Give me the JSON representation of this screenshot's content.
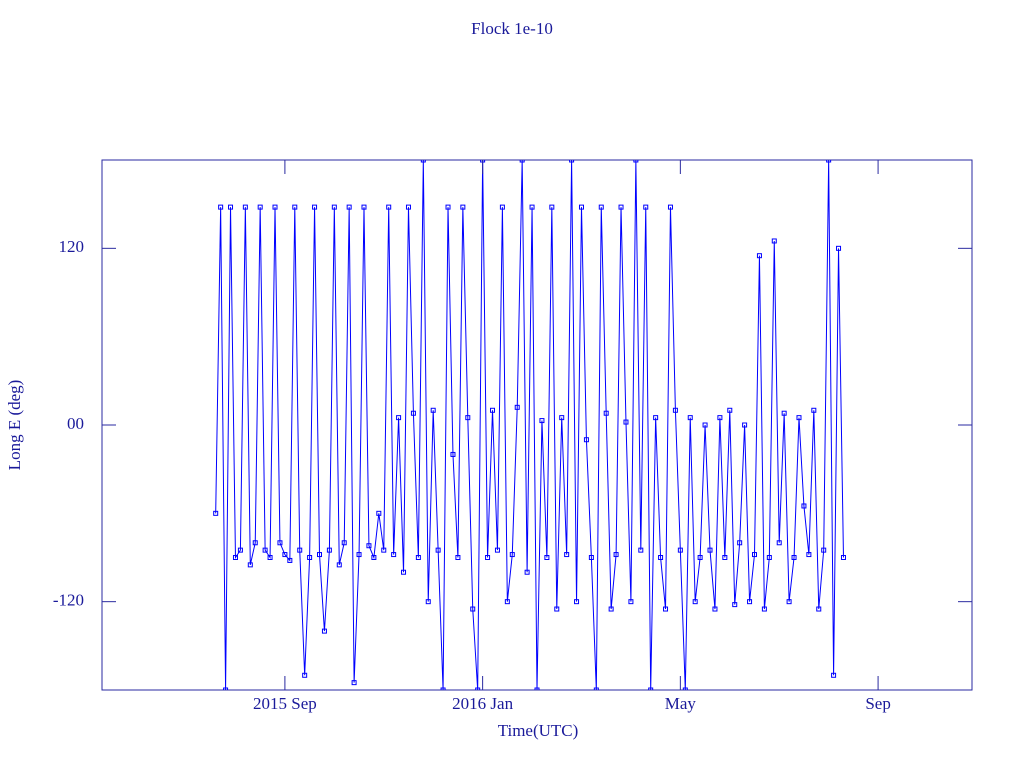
{
  "chart_data": {
    "type": "line",
    "title": "Flock 1e-10",
    "x_label": "Time(UTC)",
    "y_label": "Long E (deg)",
    "xlim": [
      4.3,
      21.9
    ],
    "xticks": [
      {
        "value": 8,
        "label": "2015 Sep"
      },
      {
        "value": 12,
        "label": "2016 Jan"
      },
      {
        "value": 16,
        "label": "May"
      },
      {
        "value": 20,
        "label": "Sep"
      }
    ],
    "ylim": [
      -180,
      180
    ],
    "yticks": [
      -120,
      {
        "value": 0,
        "label": "00"
      },
      120
    ],
    "series": [
      {
        "color": "#0000ff",
        "x": [
          6.6,
          6.7,
          6.8,
          6.9,
          7.0,
          7.1,
          7.2,
          7.3,
          7.4,
          7.5,
          7.6,
          7.7,
          7.8,
          7.9,
          8.0,
          8.1,
          8.2,
          8.3,
          8.4,
          8.5,
          8.6,
          8.7,
          8.8,
          8.9,
          9.0,
          9.1,
          9.2,
          9.3,
          9.4,
          9.5,
          9.6,
          9.7,
          9.8,
          9.9,
          10.0,
          10.1,
          10.2,
          10.3,
          10.4,
          10.5,
          10.6,
          10.7,
          10.8,
          10.9,
          11.0,
          11.1,
          11.2,
          11.3,
          11.4,
          11.5,
          11.6,
          11.7,
          11.8,
          11.9,
          12.0,
          12.1,
          12.2,
          12.3,
          12.4,
          12.5,
          12.6,
          12.7,
          12.8,
          12.9,
          13.0,
          13.1,
          13.2,
          13.3,
          13.4,
          13.5,
          13.6,
          13.7,
          13.8,
          13.9,
          14.0,
          14.1,
          14.2,
          14.3,
          14.4,
          14.5,
          14.6,
          14.7,
          14.8,
          14.9,
          15.0,
          15.1,
          15.2,
          15.3,
          15.4,
          15.5,
          15.6,
          15.7,
          15.8,
          15.9,
          16.0,
          16.1,
          16.2,
          16.3,
          16.4,
          16.5,
          16.6,
          16.7,
          16.8,
          16.9,
          17.0,
          17.1,
          17.2,
          17.3,
          17.4,
          17.5,
          17.6,
          17.7,
          17.8,
          17.9,
          18.0,
          18.1,
          18.2,
          18.3,
          18.4,
          18.5,
          18.6,
          18.7,
          18.8,
          18.9,
          19.0,
          19.1,
          19.2,
          19.3
        ],
        "values": [
          -60,
          148,
          -180,
          148,
          -90,
          -85,
          148,
          -95,
          -80,
          148,
          -85,
          -90,
          148,
          -80,
          -88,
          -92,
          148,
          -85,
          -170,
          -90,
          148,
          -88,
          -140,
          -85,
          148,
          -95,
          -80,
          148,
          -175,
          -88,
          148,
          -82,
          -90,
          -60,
          -85,
          148,
          -88,
          5,
          -100,
          148,
          8,
          -90,
          180,
          -120,
          10,
          -85,
          -180,
          148,
          -20,
          -90,
          148,
          5,
          -125,
          -180,
          180,
          -90,
          10,
          -85,
          148,
          -120,
          -88,
          12,
          180,
          -100,
          148,
          -180,
          3,
          -90,
          148,
          -125,
          5,
          -88,
          180,
          -120,
          148,
          -10,
          -90,
          -180,
          148,
          8,
          -125,
          -88,
          148,
          2,
          -120,
          180,
          -85,
          148,
          -180,
          5,
          -90,
          -125,
          148,
          10,
          -85,
          -180,
          5,
          -120,
          -90,
          0,
          -85,
          -125,
          5,
          -90,
          10,
          -122,
          -80,
          0,
          -120,
          -88,
          115,
          -125,
          -90,
          125,
          -80,
          8,
          -120,
          -90,
          5,
          -55,
          -88,
          10,
          -125,
          -85,
          180,
          -170,
          120,
          -90
        ]
      }
    ]
  }
}
